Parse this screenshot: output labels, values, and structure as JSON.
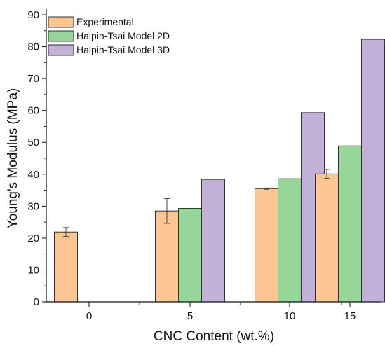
{
  "chart_data": {
    "type": "bar",
    "title": "",
    "xlabel": "CNC Content (wt.%)",
    "ylabel": "Young's Modulus (MPa)",
    "categories": [
      "0",
      "5",
      "10",
      "15"
    ],
    "ylim": [
      0,
      90
    ],
    "yticks": [
      0,
      10,
      20,
      30,
      40,
      50,
      60,
      70,
      80,
      90
    ],
    "grid": false,
    "legend_position": "top-left",
    "series": [
      {
        "name": "Experimental",
        "color": "#fcc693",
        "values": [
          21.9,
          28.5,
          35.5,
          40.1
        ],
        "errors": [
          1.4,
          3.9,
          0.2,
          1.4
        ]
      },
      {
        "name": "Halpin-Tsai Model 2D",
        "color": "#97d699",
        "values": [
          null,
          29.3,
          38.6,
          48.9
        ],
        "errors": null
      },
      {
        "name": "Halpin-Tsai Model 3D",
        "color": "#c2b0d8",
        "values": [
          null,
          38.4,
          59.3,
          82.3
        ],
        "errors": null
      }
    ]
  }
}
